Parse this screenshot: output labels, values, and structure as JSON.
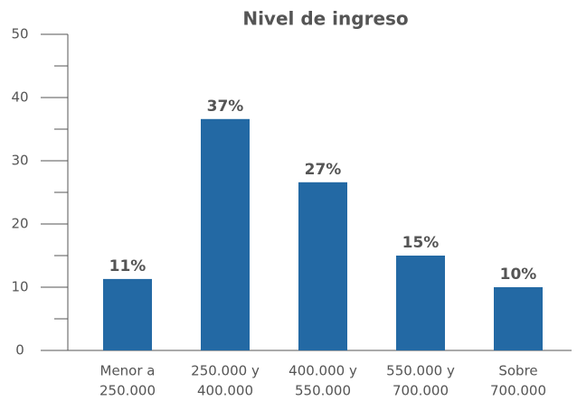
{
  "chart_data": {
    "type": "bar",
    "title": "Nivel de ingreso",
    "categories": [
      [
        "Menor a",
        "250.000"
      ],
      [
        "250.000 y",
        "400.000"
      ],
      [
        "400.000 y",
        "550.000"
      ],
      [
        "550.000 y",
        "700.000"
      ],
      [
        "Sobre",
        "700.000"
      ]
    ],
    "values": [
      11.3,
      36.6,
      26.6,
      15,
      10
    ],
    "value_labels": [
      "11%",
      "37%",
      "27%",
      "15%",
      "10%"
    ],
    "color": "#2369a4",
    "ylim": [
      0,
      50
    ],
    "yticks": [
      0,
      10,
      20,
      30,
      40,
      50
    ],
    "minor_yticks": [
      5,
      15,
      25,
      35,
      45
    ],
    "grid": false
  }
}
